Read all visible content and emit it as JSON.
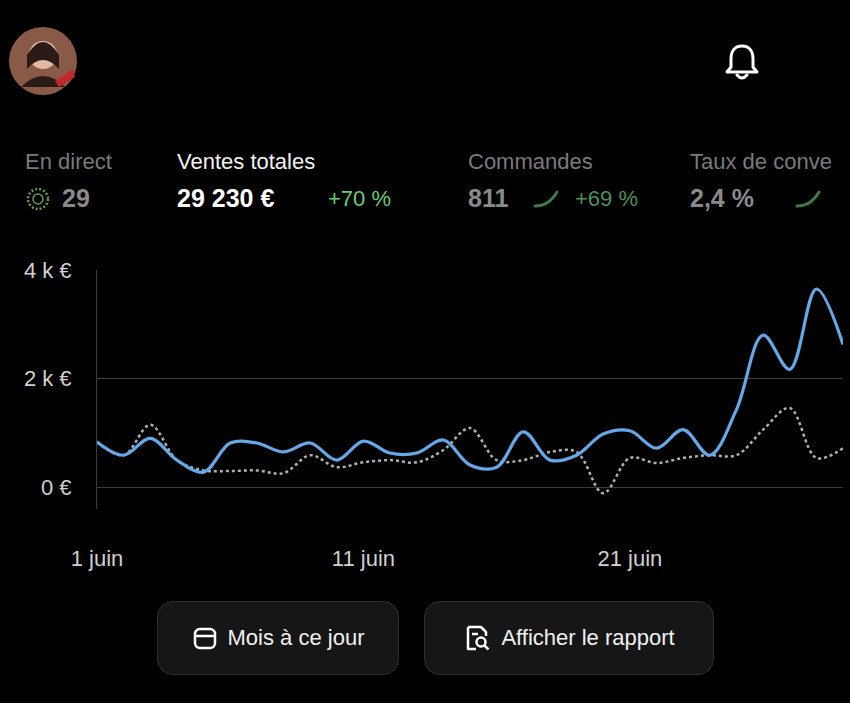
{
  "header": {
    "stats": [
      {
        "label": "En direct",
        "value": "29"
      },
      {
        "label": "Ventes totales",
        "value": "29 230 €",
        "change": "+70 %"
      },
      {
        "label": "Commandes",
        "value": "811",
        "change": "+69 %"
      },
      {
        "label": "Taux de conve",
        "value": "2,4 %"
      }
    ]
  },
  "chart_data": {
    "type": "line",
    "categories": [
      "1 juin",
      null,
      null,
      null,
      null,
      null,
      null,
      null,
      null,
      null,
      "11 juin",
      null,
      null,
      null,
      null,
      null,
      null,
      null,
      null,
      null,
      "21 juin",
      null,
      null,
      null,
      null,
      null,
      null,
      null,
      null
    ],
    "series": [
      {
        "color": "#64a8e8",
        "line_style": "solid",
        "values": [
          833,
          590,
          900,
          500,
          280,
          815,
          815,
          650,
          815,
          500,
          850,
          630,
          630,
          870,
          410,
          370,
          1020,
          500,
          590,
          980,
          1040,
          720,
          1060,
          590,
          1430,
          2800,
          2170,
          3650,
          2630
        ]
      },
      {
        "color": "#b0b0b0",
        "line_style": "dotted",
        "values": [
          833,
          590,
          1150,
          500,
          310,
          300,
          310,
          260,
          590,
          370,
          460,
          500,
          460,
          685,
          1090,
          500,
          500,
          650,
          650,
          -110,
          540,
          445,
          540,
          590,
          590,
          1060,
          1460,
          540,
          720
        ]
      }
    ],
    "ylim": [
      -400,
      4000
    ],
    "yticks": [
      {
        "value": 0,
        "label": "0 €"
      },
      {
        "value": 2000,
        "label": "2 k €"
      },
      {
        "value": 4000,
        "label": "4 k €"
      }
    ],
    "grid": true
  },
  "buttons": [
    "Mois à ce jour",
    "Afficher le rapport"
  ]
}
